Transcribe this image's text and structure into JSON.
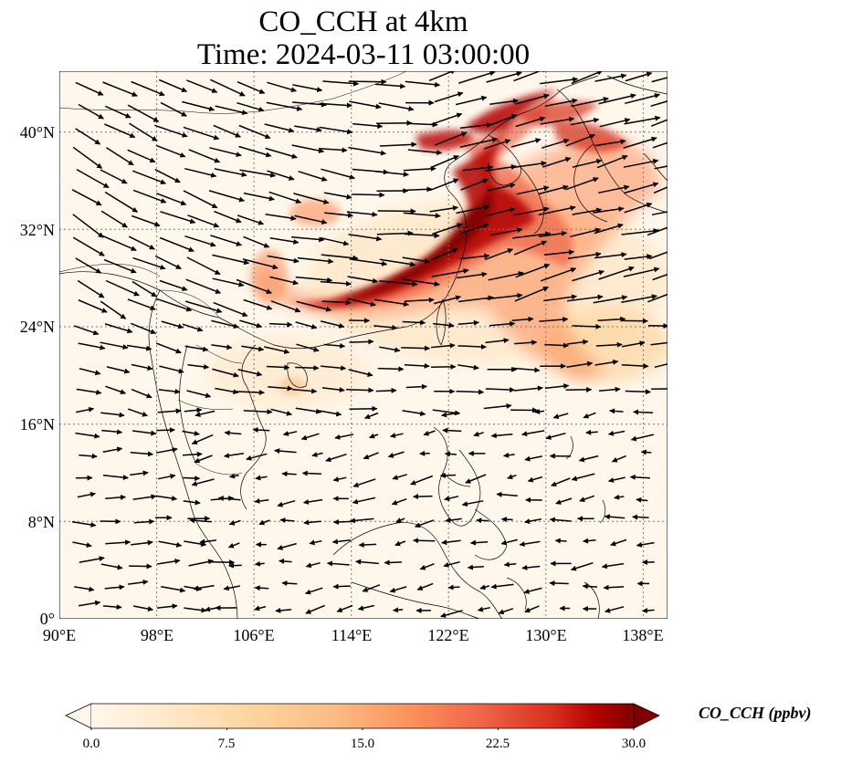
{
  "map": {
    "title": "CO_CCH at 4km",
    "time": "Time: 2024-03-11 03:00:00",
    "lon_ticks": [
      "90°E",
      "98°E",
      "106°E",
      "114°E",
      "122°E",
      "130°E",
      "138°E"
    ],
    "lat_ticks": [
      "40°N",
      "32°N",
      "24°N",
      "16°N",
      "8°N",
      "0°"
    ],
    "lon_range": [
      90,
      140
    ],
    "lat_range": [
      0,
      45
    ],
    "gridlines": "dotted",
    "colormap": "OrRd",
    "colors": {
      "low": "#fff7ec",
      "mid": "#fdbb84",
      "high": "#7f0000",
      "coast": "#000000",
      "vector": "#000000"
    }
  },
  "colorbar": {
    "label": "CO_CCH (ppbv)",
    "ticks": [
      "0.0",
      "7.5",
      "15.0",
      "22.5",
      "30.0"
    ],
    "range": [
      0,
      30
    ],
    "extend": "both"
  }
}
